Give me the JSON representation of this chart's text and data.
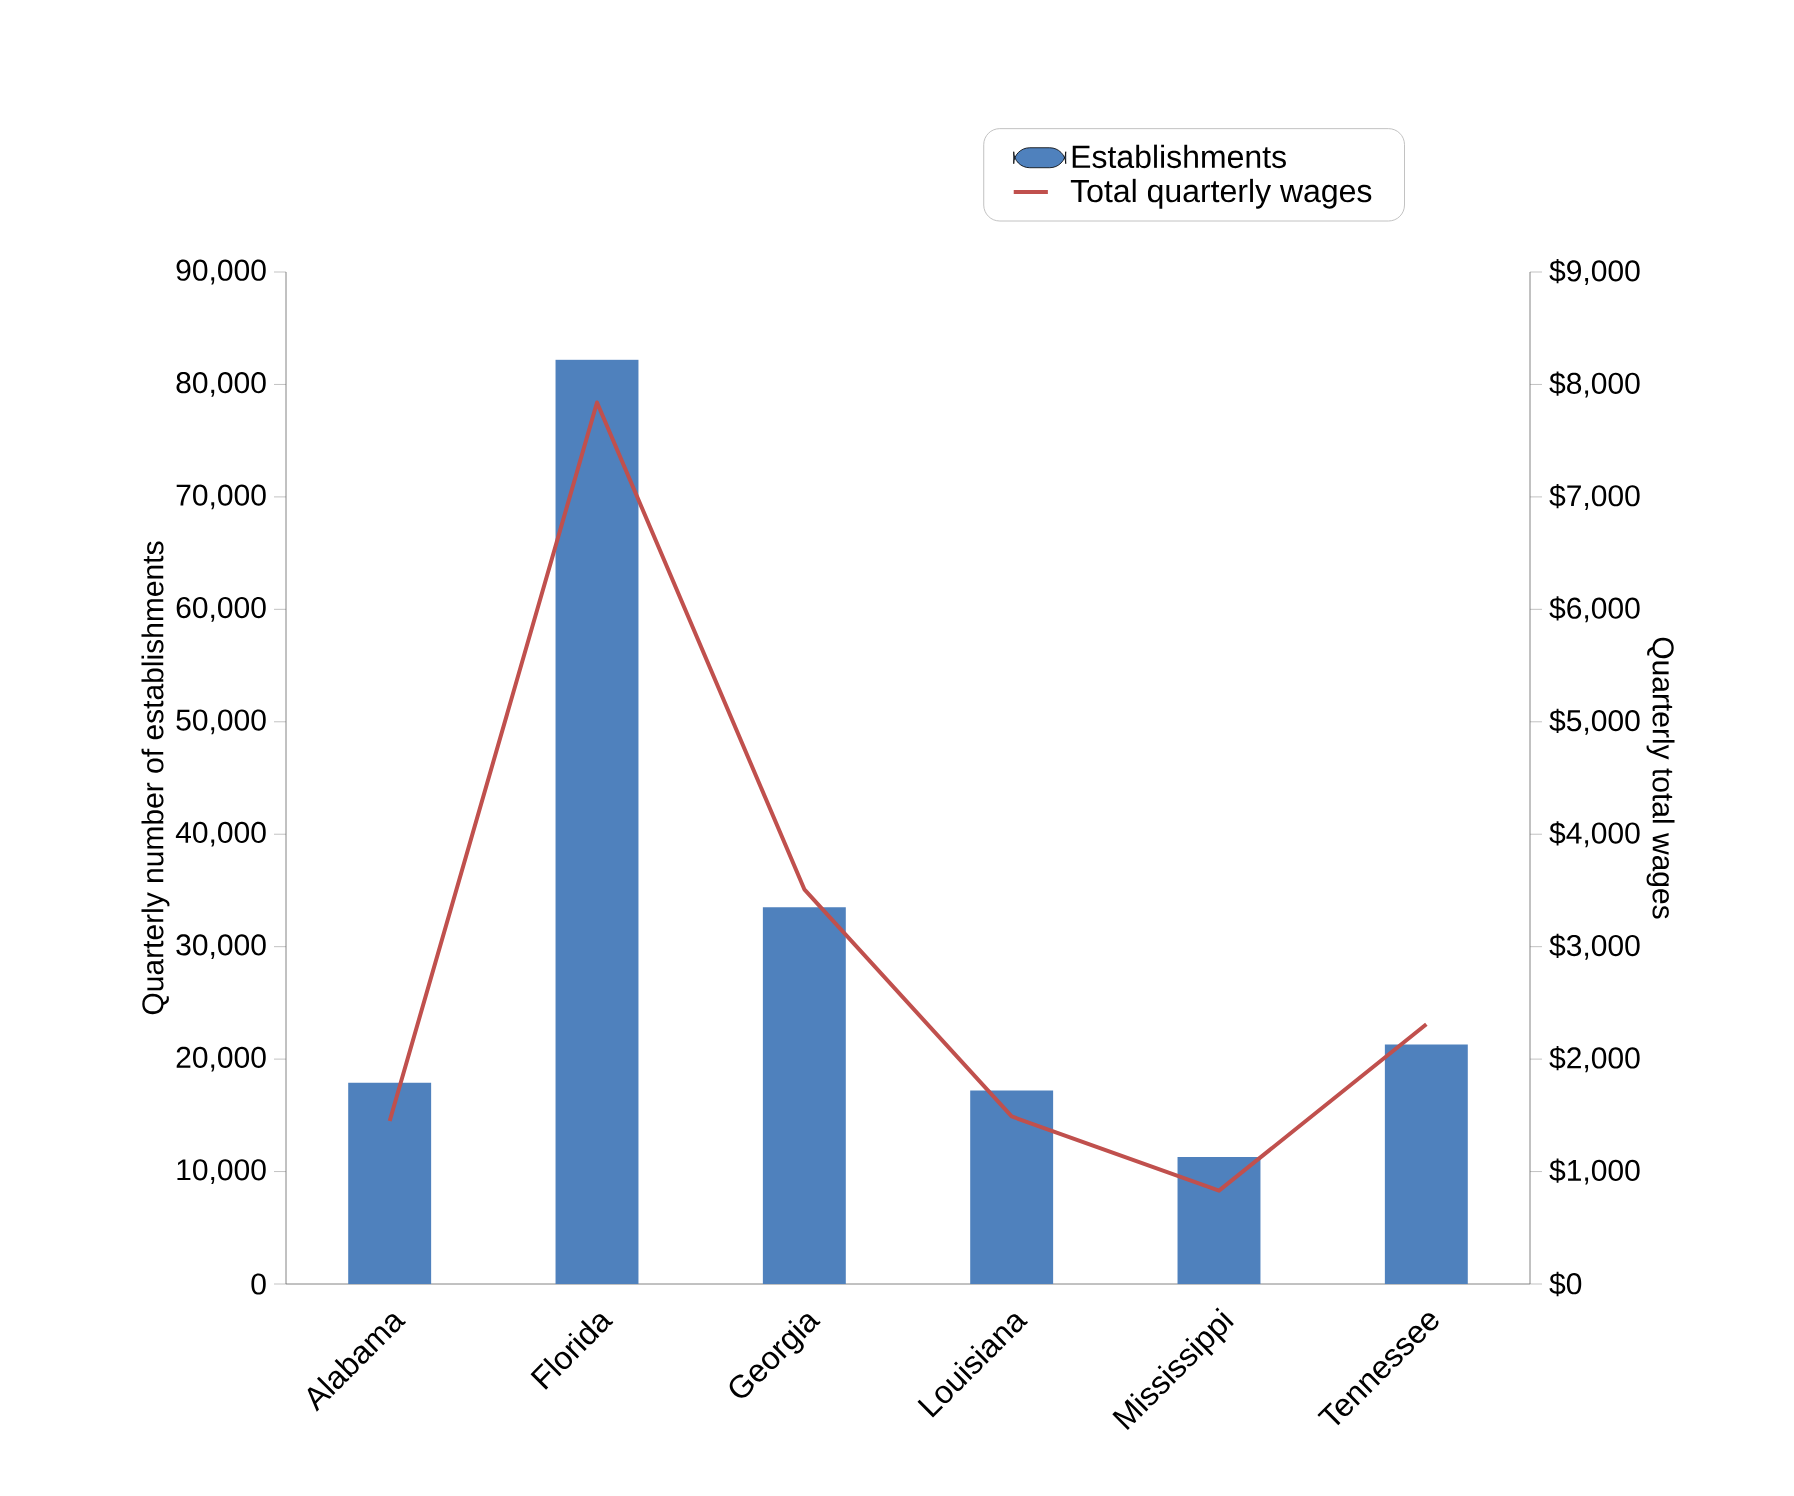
{
  "chart_data": {
    "type": "bar",
    "categories": [
      "Alabama",
      "Florida",
      "Georgia",
      "Louisiana",
      "Mississippi",
      "Tennessee"
    ],
    "series": [
      {
        "name": "Establishments",
        "color": "#4f81bd",
        "values": [
          17900,
          82200,
          33500,
          17200,
          11300,
          21300
        ]
      },
      {
        "name": "Total quarterly wages",
        "type": "line",
        "axis": "y2",
        "color": "#c0504d",
        "values": [
          1450,
          7840,
          3510,
          1490,
          830,
          2310
        ]
      }
    ],
    "ylabel": "Quarterly number of establishments",
    "y2label": "Quarterly total wages",
    "ylim": [
      0,
      90000
    ],
    "yticks": [
      {
        "value": 0,
        "label": "0"
      },
      {
        "value": 10000,
        "label": "10,000"
      },
      {
        "value": 20000,
        "label": "20,000"
      },
      {
        "value": 30000,
        "label": "30,000"
      },
      {
        "value": 40000,
        "label": "40,000"
      },
      {
        "value": 50000,
        "label": "50,000"
      },
      {
        "value": 60000,
        "label": "60,000"
      },
      {
        "value": 70000,
        "label": "70,000"
      },
      {
        "value": 80000,
        "label": "80,000"
      },
      {
        "value": 90000,
        "label": "90,000"
      }
    ],
    "y2lim": [
      0,
      9000
    ],
    "y2ticks": [
      {
        "value": 0,
        "label": "$0"
      },
      {
        "value": 1000,
        "label": "$1,000"
      },
      {
        "value": 2000,
        "label": "$2,000"
      },
      {
        "value": 3000,
        "label": "$3,000"
      },
      {
        "value": 4000,
        "label": "$4,000"
      },
      {
        "value": 5000,
        "label": "$5,000"
      },
      {
        "value": 6000,
        "label": "$6,000"
      },
      {
        "value": 7000,
        "label": "$7,000"
      },
      {
        "value": 8000,
        "label": "$8,000"
      },
      {
        "value": 9000,
        "label": "$9,000"
      }
    ],
    "grid": false,
    "legend": "top",
    "marker": "none",
    "line_style": "solid"
  }
}
